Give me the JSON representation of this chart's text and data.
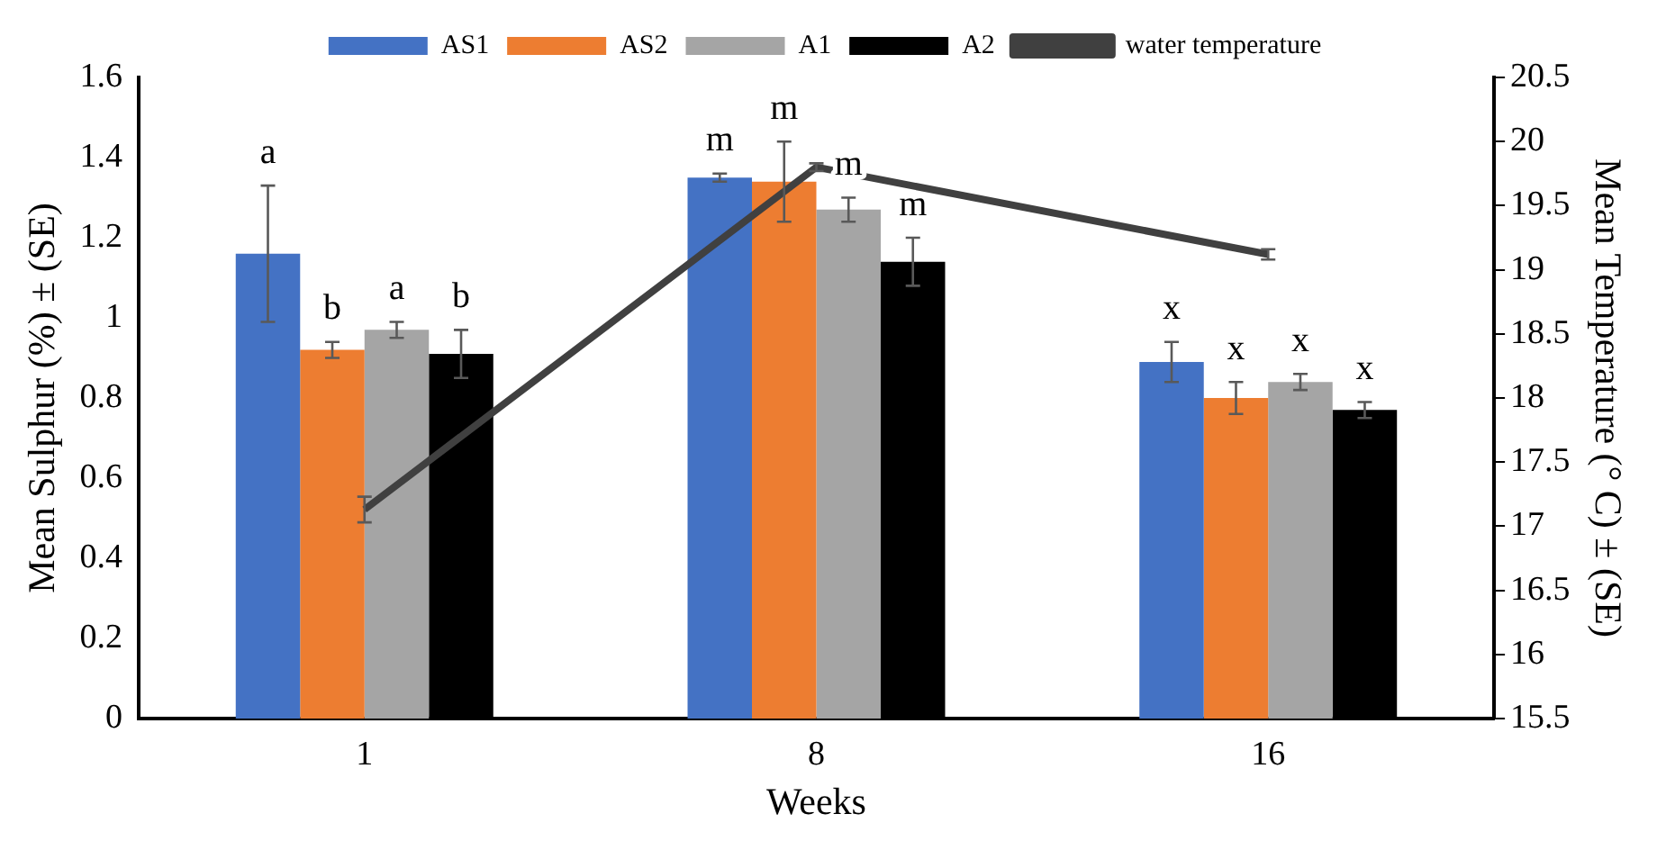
{
  "chart_data": {
    "type": "bar",
    "xlabel": "Weeks",
    "ylabel": "Mean Sulphur (%) ± (SE)",
    "y2label": "Mean Temperature (° C) ± (SE)",
    "categories": [
      "1",
      "8",
      "16"
    ],
    "series": [
      {
        "name": "AS1",
        "color": "#4472c4",
        "values": [
          1.16,
          1.35,
          0.89
        ],
        "errors": [
          0.17,
          0.01,
          0.05
        ],
        "value_labels": [
          "a",
          "m",
          "x"
        ]
      },
      {
        "name": "AS2",
        "color": "#ed7d31",
        "values": [
          0.92,
          1.34,
          0.8
        ],
        "errors": [
          0.02,
          0.1,
          0.04
        ],
        "value_labels": [
          "b",
          "m",
          "x"
        ]
      },
      {
        "name": "A1",
        "color": "#a5a5a5",
        "values": [
          0.97,
          1.27,
          0.84
        ],
        "errors": [
          0.02,
          0.03,
          0.02
        ],
        "value_labels": [
          "a",
          "m",
          "x"
        ]
      },
      {
        "name": "A2",
        "color": "#000000",
        "values": [
          0.91,
          1.14,
          0.77
        ],
        "errors": [
          0.06,
          0.06,
          0.02
        ],
        "value_labels": [
          "b",
          "m",
          "x"
        ]
      },
      {
        "name": "water temperature",
        "type": "line",
        "axis": "y2",
        "color": "#404040",
        "values": [
          17.13,
          19.8,
          19.12
        ],
        "errors": [
          0.1,
          0.03,
          0.04
        ]
      }
    ],
    "ylim": [
      0,
      1.6
    ],
    "yticks": [
      0,
      0.2,
      0.4,
      0.6,
      0.8,
      1,
      1.2,
      1.4,
      1.6
    ],
    "y2lim": [
      15.5,
      20.5
    ],
    "y2ticks": [
      15.5,
      16,
      16.5,
      17,
      17.5,
      18,
      18.5,
      19,
      19.5,
      20,
      20.5
    ],
    "grid": false,
    "legend": "top",
    "marker": "none",
    "line_style": "solid"
  }
}
